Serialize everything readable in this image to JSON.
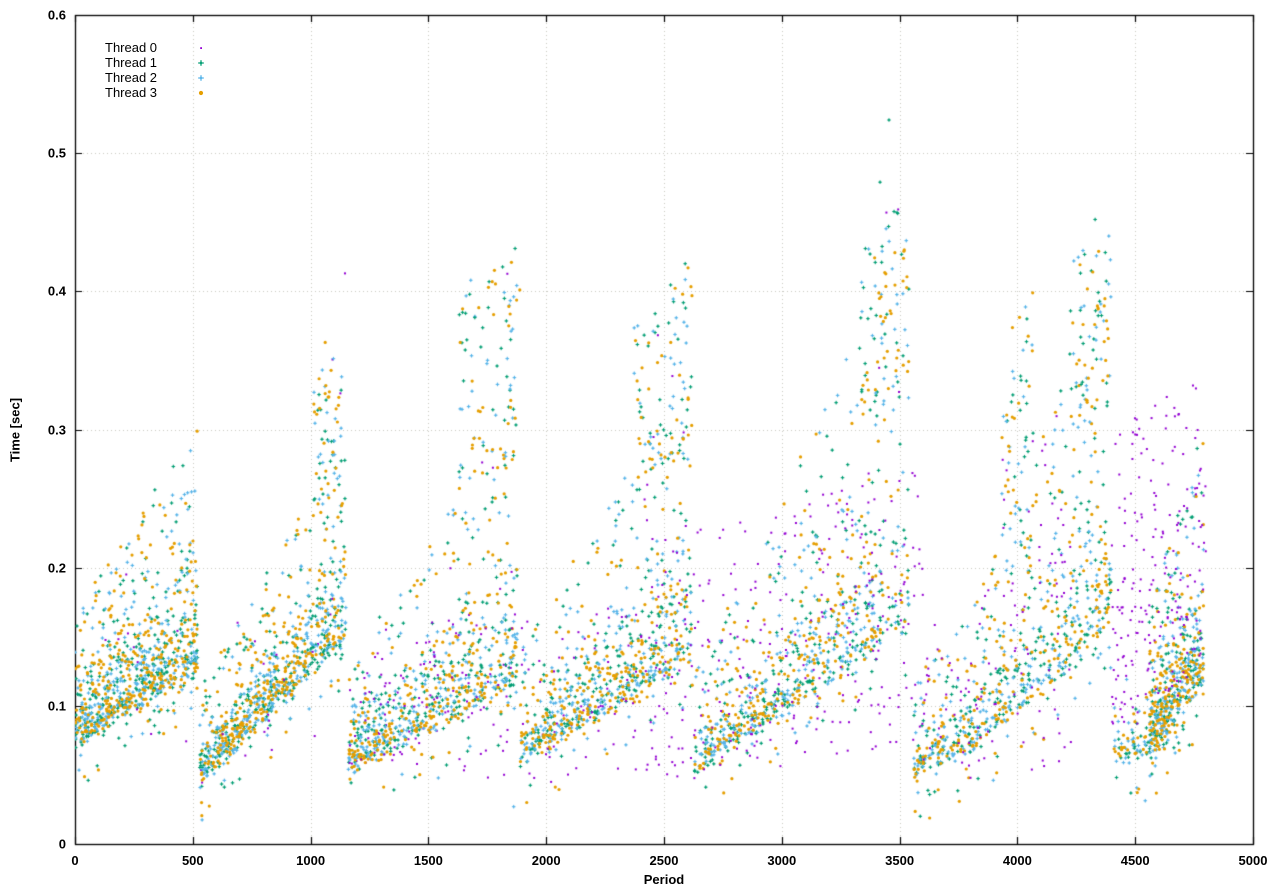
{
  "chart_data": {
    "type": "scatter",
    "title": "",
    "xlabel": "Period",
    "ylabel": "Time [sec]",
    "xlim": [
      0,
      5000
    ],
    "ylim": [
      0,
      0.6
    ],
    "xticks": {
      "values": [
        0,
        500,
        1000,
        1500,
        2000,
        2500,
        3000,
        3500,
        4000,
        4500,
        5000
      ],
      "labels": [
        "0",
        "500",
        "1000",
        "1500",
        "2000",
        "2500",
        "3000",
        "3500",
        "4000",
        "4500",
        "5000"
      ]
    },
    "yticks": {
      "values": [
        0,
        0.1,
        0.2,
        0.3,
        0.4,
        0.5,
        0.6
      ],
      "labels": [
        "0",
        "0.1",
        "0.2",
        "0.3",
        "0.4",
        "0.5",
        "0.6"
      ]
    },
    "grid": "dotted",
    "grid_color": "#c8c8c0",
    "axis_color": "#000000",
    "background_color": "#ffffff",
    "legend_position": "top-left-inside",
    "seed": 11,
    "series": [
      {
        "name": "Thread 0",
        "color": "#9400d3",
        "marker": "dot",
        "size": 1.3
      },
      {
        "name": "Thread 1",
        "color": "#009e73",
        "marker": "plus",
        "size": 1.8
      },
      {
        "name": "Thread 2",
        "color": "#56b4e9",
        "marker": "plus",
        "size": 1.8
      },
      {
        "name": "Thread 3",
        "color": "#e69f00",
        "marker": "circle",
        "size": 1.6
      }
    ],
    "clusters": [
      {
        "id": "ramp-1",
        "kind": "ramp",
        "x": [
          0,
          520
        ],
        "base": [
          0.075,
          0.125
        ],
        "top": [
          0.17,
          0.3
        ],
        "counts": [
          8,
          300,
          300,
          320
        ]
      },
      {
        "id": "ramp-2",
        "kind": "ramp",
        "x": [
          530,
          1150
        ],
        "base": [
          0.045,
          0.15
        ],
        "top": [
          0.11,
          0.3
        ],
        "counts": [
          8,
          280,
          280,
          300
        ]
      },
      {
        "id": "spike-2",
        "kind": "cloud",
        "x": [
          1010,
          1140
        ],
        "base": [
          0.24,
          0.25
        ],
        "top": [
          0.34,
          0.365
        ],
        "counts": [
          2,
          20,
          22,
          26
        ]
      },
      {
        "id": "ramp-3",
        "kind": "ramp",
        "x": [
          1160,
          1880
        ],
        "base": [
          0.055,
          0.115
        ],
        "top": [
          0.13,
          0.33
        ],
        "counts": [
          30,
          250,
          250,
          270
        ]
      },
      {
        "id": "spike-3",
        "kind": "cloud",
        "x": [
          1630,
          1880
        ],
        "base": [
          0.26,
          0.27
        ],
        "top": [
          0.4,
          0.43
        ],
        "counts": [
          3,
          30,
          30,
          32
        ]
      },
      {
        "id": "ramp-4",
        "kind": "ramp",
        "x": [
          1890,
          2620
        ],
        "base": [
          0.06,
          0.135
        ],
        "top": [
          0.14,
          0.34
        ],
        "counts": [
          30,
          250,
          250,
          270
        ]
      },
      {
        "id": "spike-4",
        "kind": "cloud",
        "x": [
          2370,
          2620
        ],
        "base": [
          0.26,
          0.27
        ],
        "top": [
          0.38,
          0.42
        ],
        "counts": [
          4,
          30,
          30,
          32
        ]
      },
      {
        "id": "ramp-5a",
        "kind": "ramp",
        "x": [
          2630,
          2860
        ],
        "base": [
          0.055,
          0.08
        ],
        "top": [
          0.13,
          0.2
        ],
        "counts": [
          0,
          70,
          70,
          75
        ]
      },
      {
        "id": "ramp-5b",
        "kind": "ramp",
        "x": [
          2860,
          3200
        ],
        "base": [
          0.08,
          0.12
        ],
        "top": [
          0.2,
          0.34
        ],
        "counts": [
          0,
          110,
          110,
          115
        ]
      },
      {
        "id": "ramp-5c",
        "kind": "ramp",
        "x": [
          3200,
          3540
        ],
        "base": [
          0.12,
          0.16
        ],
        "top": [
          0.34,
          0.43
        ],
        "counts": [
          0,
          90,
          90,
          95
        ]
      },
      {
        "id": "spike-5",
        "kind": "cloud",
        "x": [
          3330,
          3540
        ],
        "base": [
          0.3,
          0.32
        ],
        "top": [
          0.44,
          0.47
        ],
        "counts": [
          4,
          30,
          26,
          30
        ]
      },
      {
        "id": "ramp-6a",
        "kind": "ramp",
        "x": [
          3560,
          3800
        ],
        "base": [
          0.05,
          0.07
        ],
        "top": [
          0.12,
          0.18
        ],
        "counts": [
          0,
          65,
          65,
          70
        ]
      },
      {
        "id": "ramp-6b",
        "kind": "ramp",
        "x": [
          3800,
          4160
        ],
        "base": [
          0.07,
          0.12
        ],
        "top": [
          0.18,
          0.32
        ],
        "counts": [
          0,
          100,
          100,
          105
        ]
      },
      {
        "id": "ramp-6c",
        "kind": "ramp",
        "x": [
          4160,
          4400
        ],
        "base": [
          0.12,
          0.16
        ],
        "top": [
          0.32,
          0.42
        ],
        "counts": [
          0,
          75,
          75,
          80
        ]
      },
      {
        "id": "spike-6a",
        "kind": "cloud",
        "x": [
          3930,
          4070
        ],
        "base": [
          0.18,
          0.2
        ],
        "top": [
          0.36,
          0.4
        ],
        "counts": [
          0,
          22,
          22,
          24
        ]
      },
      {
        "id": "spike-6b",
        "kind": "cloud",
        "x": [
          4220,
          4400
        ],
        "base": [
          0.28,
          0.3
        ],
        "top": [
          0.43,
          0.46
        ],
        "counts": [
          0,
          26,
          24,
          28
        ]
      },
      {
        "id": "ramp-7a",
        "kind": "ramp",
        "x": [
          4410,
          4640
        ],
        "base": [
          0.055,
          0.075
        ],
        "top": [
          0.12,
          0.18
        ],
        "counts": [
          0,
          40,
          45,
          40
        ]
      },
      {
        "id": "ramp-7b",
        "kind": "ramp",
        "x": [
          4560,
          4790
        ],
        "base": [
          0.065,
          0.12
        ],
        "top": [
          0.17,
          0.3
        ],
        "counts": [
          0,
          160,
          160,
          180
        ]
      },
      {
        "id": "purple-early",
        "kind": "cloud",
        "x": [
          0,
          1150
        ],
        "base": [
          0.05,
          0.05
        ],
        "top": [
          0.16,
          0.18
        ],
        "counts": [
          22,
          0,
          0,
          0
        ]
      },
      {
        "id": "purple-1",
        "kind": "cloud",
        "x": [
          1160,
          1560
        ],
        "base": [
          0.05,
          0.06
        ],
        "top": [
          0.13,
          0.16
        ],
        "counts": [
          55,
          0,
          0,
          0
        ]
      },
      {
        "id": "purple-2",
        "kind": "cloud",
        "x": [
          1560,
          1900
        ],
        "base": [
          0.05,
          0.05
        ],
        "top": [
          0.18,
          0.2
        ],
        "counts": [
          30,
          0,
          0,
          0
        ]
      },
      {
        "id": "purple-3",
        "kind": "cloud",
        "x": [
          1900,
          2430
        ],
        "base": [
          0.05,
          0.05
        ],
        "top": [
          0.16,
          0.18
        ],
        "counts": [
          45,
          0,
          0,
          0
        ]
      },
      {
        "id": "purple-4",
        "kind": "cloud",
        "x": [
          2430,
          3600
        ],
        "base": [
          0.045,
          0.07
        ],
        "top": [
          0.22,
          0.28
        ],
        "counts": [
          280,
          0,
          0,
          0
        ]
      },
      {
        "id": "purple-5",
        "kind": "cloud",
        "x": [
          3600,
          4230
        ],
        "base": [
          0.05,
          0.06
        ],
        "top": [
          0.18,
          0.22
        ],
        "counts": [
          90,
          0,
          0,
          0
        ]
      },
      {
        "id": "purple-6",
        "kind": "cloud",
        "x": [
          3930,
          4230
        ],
        "base": [
          0.16,
          0.18
        ],
        "top": [
          0.3,
          0.34
        ],
        "counts": [
          25,
          0,
          0,
          0
        ]
      },
      {
        "id": "purple-7",
        "kind": "cloud",
        "x": [
          4400,
          4800
        ],
        "base": [
          0.08,
          0.12
        ],
        "top": [
          0.3,
          0.34
        ],
        "counts": [
          210,
          0,
          0,
          0
        ]
      }
    ],
    "outliers": [
      [
        [
          1146,
          0.413
        ]
      ],
      [
        [
          3455,
          0.524
        ],
        [
          3417,
          0.479
        ],
        [
          3489,
          0.457
        ],
        [
          4330,
          0.452
        ],
        [
          2590,
          0.42
        ],
        [
          1868,
          0.431
        ],
        [
          1697,
          0.381
        ]
      ],
      [
        [
          4388,
          0.44
        ],
        [
          1680,
          0.408
        ],
        [
          1862,
          0.027
        ]
      ],
      [
        [
          1062,
          0.363
        ],
        [
          1888,
          0.401
        ],
        [
          2602,
          0.417
        ],
        [
          3520,
          0.43
        ],
        [
          4320,
          0.414
        ],
        [
          3480,
          0.428
        ]
      ]
    ]
  }
}
